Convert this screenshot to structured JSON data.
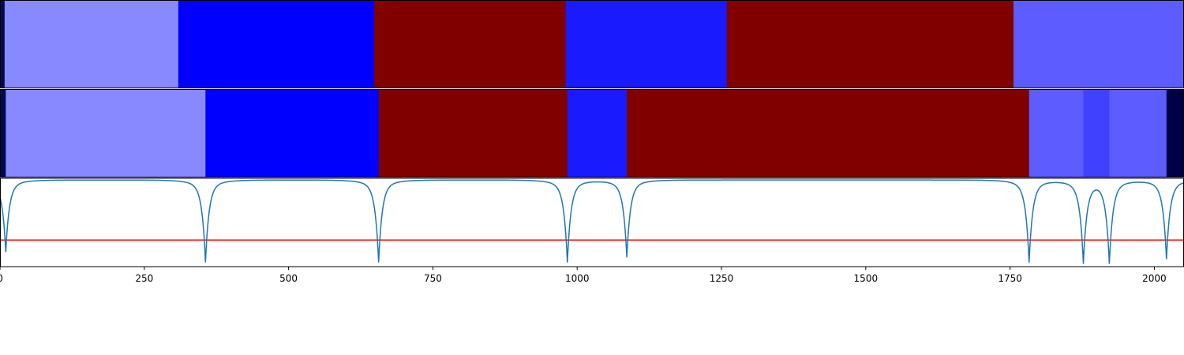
{
  "chart_data": {
    "type": "heatmap",
    "x_range": [
      0,
      2050
    ],
    "x_ticks": [
      0,
      250,
      500,
      750,
      1000,
      1250,
      1500,
      1750,
      2000
    ],
    "x_tick_labels": [
      "0",
      "250",
      "500",
      "750",
      "1000",
      "1250",
      "1500",
      "1750",
      "2000"
    ],
    "segment_tracks": [
      {
        "segments": [
          {
            "start": 0,
            "end": 8,
            "color": "#000a4d"
          },
          {
            "start": 8,
            "end": 309,
            "color": "#8888ff"
          },
          {
            "start": 309,
            "end": 648,
            "color": "#0000ff"
          },
          {
            "start": 648,
            "end": 980,
            "color": "#800000"
          },
          {
            "start": 980,
            "end": 1259,
            "color": "#1a1aff"
          },
          {
            "start": 1259,
            "end": 1756,
            "color": "#800000"
          },
          {
            "start": 1756,
            "end": 2050,
            "color": "#5c5cff"
          }
        ]
      },
      {
        "segments": [
          {
            "start": 0,
            "end": 10,
            "color": "#000a4d"
          },
          {
            "start": 10,
            "end": 356,
            "color": "#8888ff"
          },
          {
            "start": 356,
            "end": 656,
            "color": "#0000ff"
          },
          {
            "start": 656,
            "end": 983,
            "color": "#800000"
          },
          {
            "start": 983,
            "end": 1086,
            "color": "#1a1aff"
          },
          {
            "start": 1086,
            "end": 1783,
            "color": "#800000"
          },
          {
            "start": 1783,
            "end": 1877,
            "color": "#5c5cff"
          },
          {
            "start": 1877,
            "end": 1922,
            "color": "#4040ff"
          },
          {
            "start": 1922,
            "end": 2021,
            "color": "#5c5cff"
          },
          {
            "start": 2021,
            "end": 2050,
            "color": "#000047"
          }
        ]
      }
    ],
    "signal": {
      "color": "#1f77b4",
      "baseline": 1.0,
      "dips": [
        {
          "x": 10,
          "depth": 0.84
        },
        {
          "x": 356,
          "depth": 0.96
        },
        {
          "x": 656,
          "depth": 0.96
        },
        {
          "x": 983,
          "depth": 0.96
        },
        {
          "x": 1086,
          "depth": 0.9
        },
        {
          "x": 1783,
          "depth": 0.96
        },
        {
          "x": 1877,
          "depth": 0.96
        },
        {
          "x": 1922,
          "depth": 0.96
        },
        {
          "x": 2021,
          "depth": 0.92
        }
      ],
      "y_range": [
        -0.01,
        1.02
      ]
    },
    "threshold": {
      "value": 0.3,
      "color": "#ff0000"
    }
  }
}
